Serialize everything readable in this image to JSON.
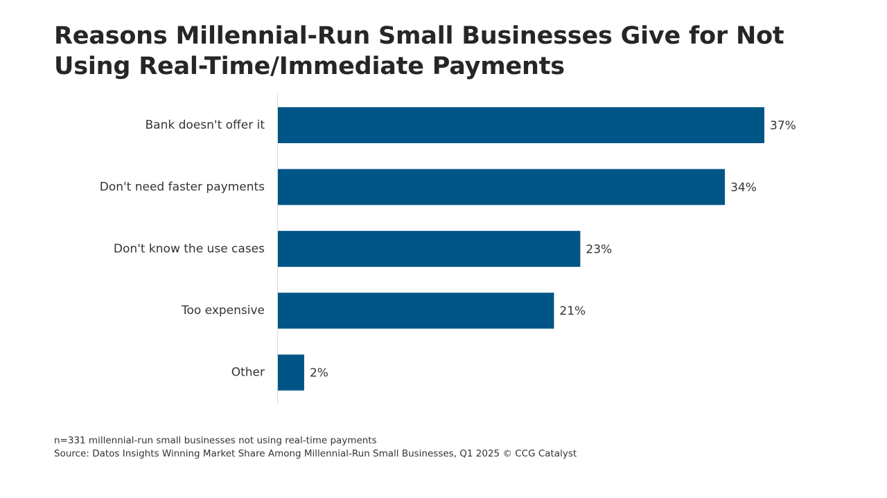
{
  "title": "Reasons Millennial-Run Small Businesses Give for Not Using Real-Time/Immediate Payments",
  "footer": {
    "note": "n=331 millennial-run small businesses not using real-time payments",
    "source": "Source: Datos Insights Winning Market Share Among Millennial-Run Small Businesses, Q1 2025 © CCG Catalyst"
  },
  "colors": {
    "bar": "#005587",
    "axis": "#d9d9d9"
  },
  "chart_data": {
    "type": "bar",
    "orientation": "horizontal",
    "categories": [
      "Bank doesn't offer it",
      "Don't need faster payments",
      "Don't know the use cases",
      "Too expensive",
      "Other"
    ],
    "values": [
      37,
      34,
      23,
      21,
      2
    ],
    "data_labels": [
      "37%",
      "34%",
      "23%",
      "21%",
      "2%"
    ],
    "value_unit": "%",
    "xlim": [
      0,
      37
    ],
    "grid": false,
    "legend": "none"
  }
}
